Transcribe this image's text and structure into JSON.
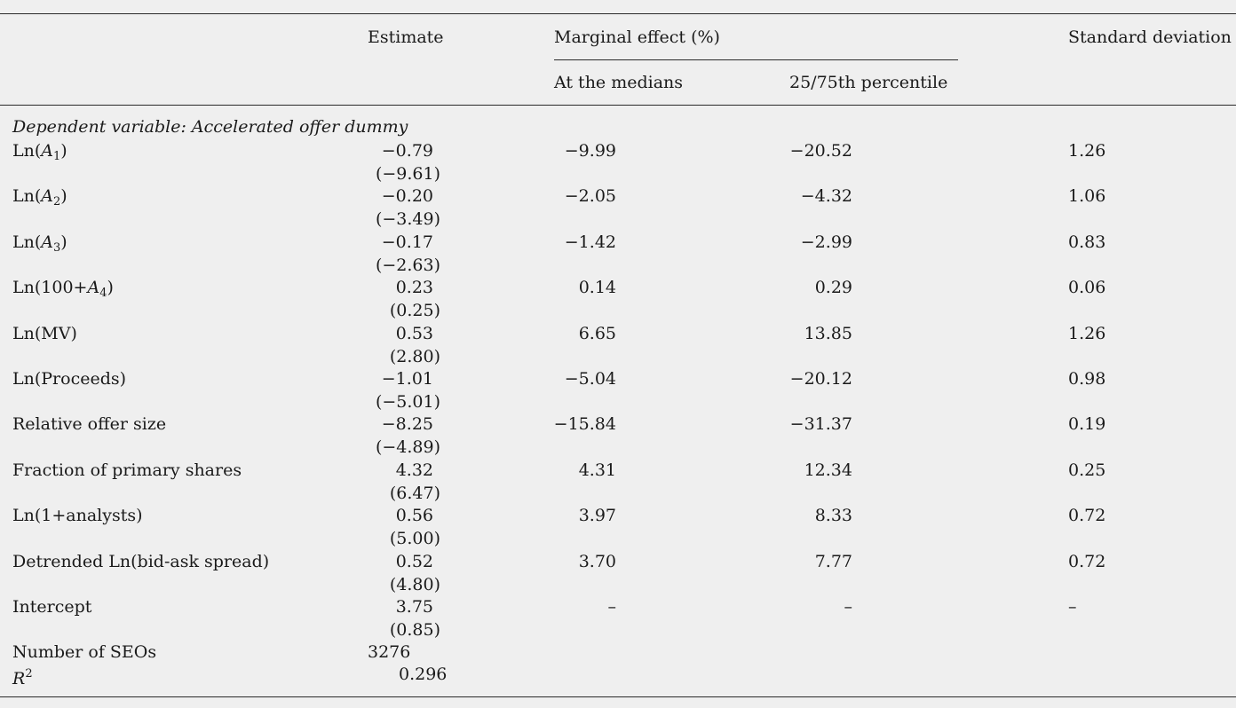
{
  "header": {
    "estimate": "Estimate",
    "marginal_effect": "Marginal effect (%)",
    "at_medians": "At the medians",
    "percentile": "25/75th percentile",
    "std_dev": "Standard deviation"
  },
  "dependent_variable": "Dependent variable: Accelerated offer dummy",
  "rows": [
    {
      "label_prefix": "Ln(",
      "label_var": "A",
      "label_sub": "1",
      "label_suffix": ")",
      "estimate": "−0.79",
      "tstat": "(−9.61)",
      "me_median": "−9.99",
      "me_pct": "−20.52",
      "sd": "1.26"
    },
    {
      "label_prefix": "Ln(",
      "label_var": "A",
      "label_sub": "2",
      "label_suffix": ")",
      "estimate": "−0.20",
      "tstat": "(−3.49)",
      "me_median": "−2.05",
      "me_pct": "−4.32",
      "sd": "1.06"
    },
    {
      "label_prefix": "Ln(",
      "label_var": "A",
      "label_sub": "3",
      "label_suffix": ")",
      "estimate": "−0.17",
      "tstat": "(−2.63)",
      "me_median": "−1.42",
      "me_pct": "−2.99",
      "sd": "0.83"
    },
    {
      "label_prefix": "Ln(100+",
      "label_var": "A",
      "label_sub": "4",
      "label_suffix": ")",
      "estimate": "0.23",
      "tstat": "(0.25)",
      "me_median": "0.14",
      "me_pct": "0.29",
      "sd": "0.06"
    },
    {
      "label": "Ln(MV)",
      "estimate": "0.53",
      "tstat": "(2.80)",
      "me_median": "6.65",
      "me_pct": "13.85",
      "sd": "1.26"
    },
    {
      "label": "Ln(Proceeds)",
      "estimate": "−1.01",
      "tstat": "(−5.01)",
      "me_median": "−5.04",
      "me_pct": "−20.12",
      "sd": "0.98"
    },
    {
      "label": "Relative offer size",
      "estimate": "−8.25",
      "tstat": "(−4.89)",
      "me_median": "−15.84",
      "me_pct": "−31.37",
      "sd": "0.19"
    },
    {
      "label": "Fraction of primary shares",
      "estimate": "4.32",
      "tstat": "(6.47)",
      "me_median": "4.31",
      "me_pct": "12.34",
      "sd": "0.25"
    },
    {
      "label": "Ln(1+analysts)",
      "estimate": "0.56",
      "tstat": "(5.00)",
      "me_median": "3.97",
      "me_pct": "8.33",
      "sd": "0.72"
    },
    {
      "label": "Detrended Ln(bid-ask spread)",
      "estimate": "0.52",
      "tstat": "(4.80)",
      "me_median": "3.70",
      "me_pct": "7.77",
      "sd": "0.72"
    },
    {
      "label": "Intercept",
      "estimate": "3.75",
      "tstat": "(0.85)",
      "me_median": "–",
      "me_pct": "–",
      "sd": "–"
    }
  ],
  "footer": {
    "n_label": "Number of SEOs",
    "n_value": "3276",
    "r2_label": "R",
    "r2_sup": "2",
    "r2_value": "0.296"
  }
}
